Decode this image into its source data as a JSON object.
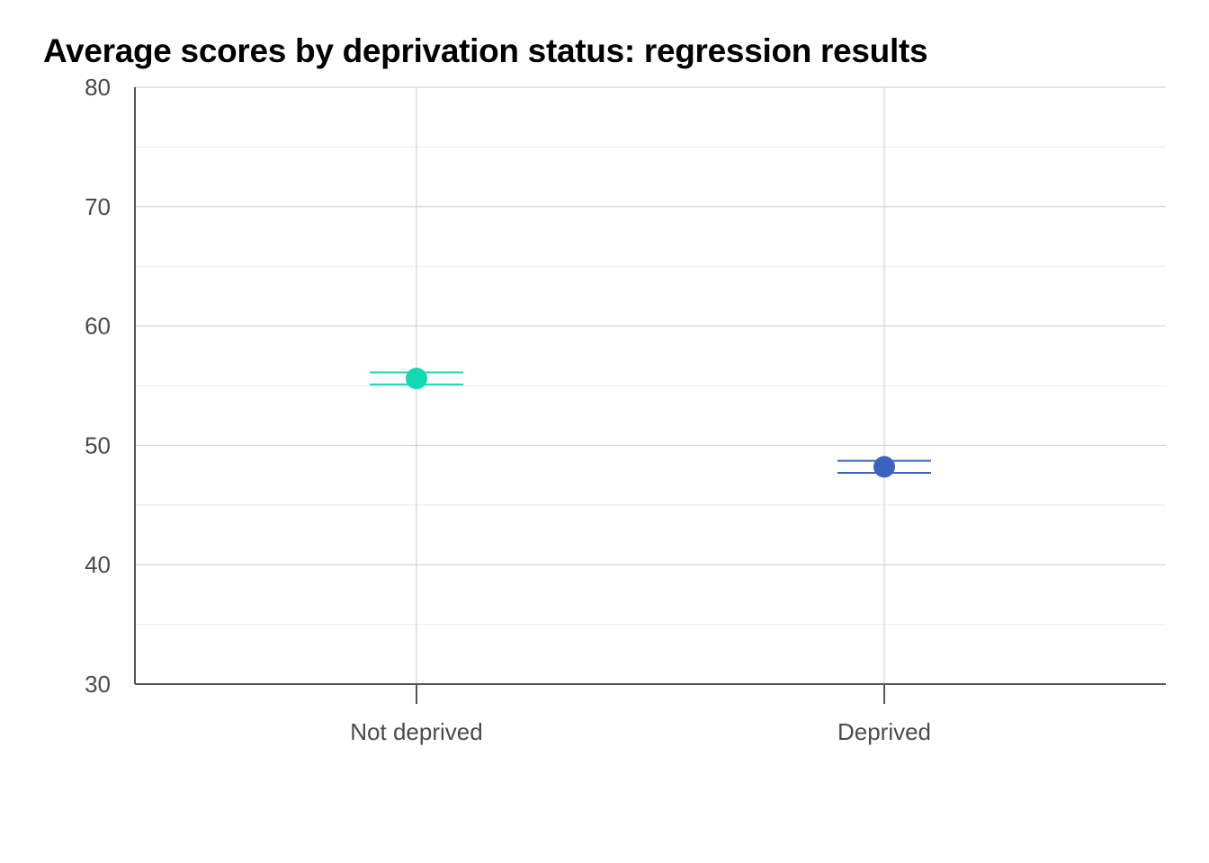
{
  "chart_data": {
    "type": "scatter",
    "title": "Average scores by deprivation status: regression results",
    "xlabel": "",
    "ylabel": "",
    "categories": [
      "Not deprived",
      "Deprived"
    ],
    "points": [
      {
        "category": "Not deprived",
        "value": 55.6,
        "ci_low": 55.1,
        "ci_high": 56.1,
        "color": "#12d8b4"
      },
      {
        "category": "Deprived",
        "value": 48.2,
        "ci_low": 47.7,
        "ci_high": 48.7,
        "color": "#3a62bf"
      }
    ],
    "ylim": [
      30,
      80
    ],
    "yticks": [
      30,
      40,
      50,
      60,
      70,
      80
    ],
    "y_minor_gridlines": [
      35,
      45,
      55,
      65,
      75
    ],
    "grid": true,
    "legend": "none"
  },
  "colors": {
    "axis": "#555555",
    "major_grid": "#cccccc",
    "minor_grid": "#ececec",
    "tick_text": "#4a4a4a"
  }
}
